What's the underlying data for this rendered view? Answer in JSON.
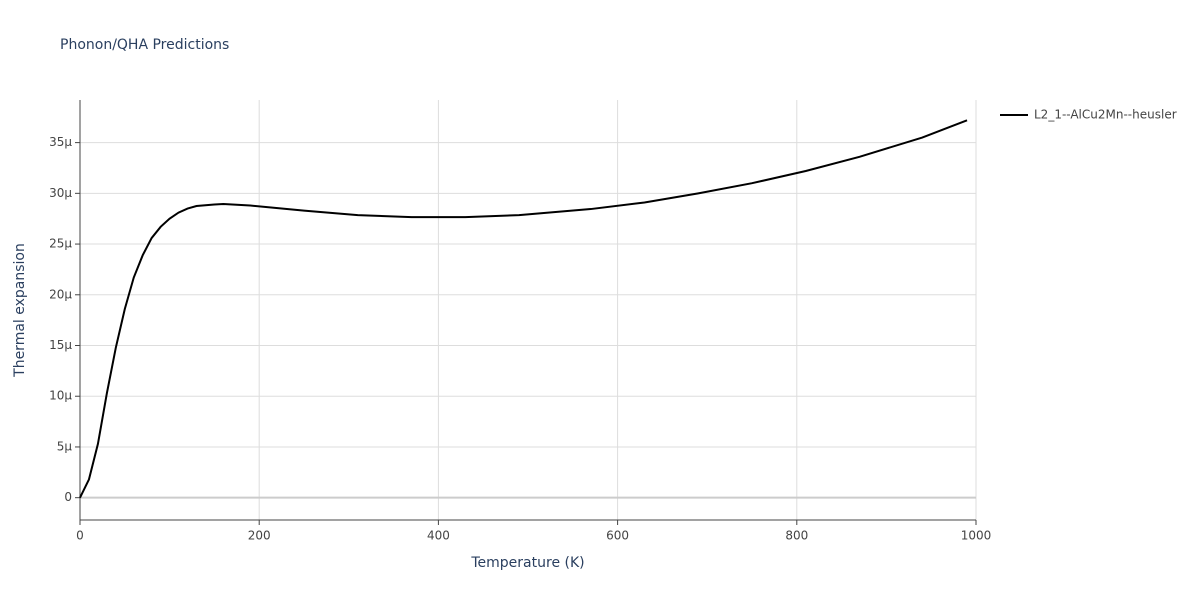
{
  "chart_data": {
    "type": "line",
    "title": "Phonon/QHA Predictions",
    "x_label": "Temperature (K)",
    "y_label": "Thermal expansion",
    "x": [
      0,
      10,
      20,
      30,
      40,
      50,
      60,
      70,
      80,
      90,
      100,
      110,
      120,
      130,
      150,
      160,
      190,
      250,
      310,
      370,
      430,
      490,
      570,
      630,
      690,
      750,
      810,
      870,
      940,
      990
    ],
    "series": [
      {
        "name": "L2_1--AlCu2Mn--heusler",
        "color": "#000000",
        "values": [
          0,
          1.8e-06,
          5.3e-06,
          1.03e-05,
          1.48e-05,
          1.86e-05,
          2.17e-05,
          2.39e-05,
          2.56e-05,
          2.67e-05,
          2.75e-05,
          2.81e-05,
          2.85e-05,
          2.875e-05,
          2.89e-05,
          2.895e-05,
          2.88e-05,
          2.83e-05,
          2.785e-05,
          2.765e-05,
          2.765e-05,
          2.785e-05,
          2.845e-05,
          2.91e-05,
          3e-05,
          3.1e-05,
          3.22e-05,
          3.36e-05,
          3.55e-05,
          3.72e-05
        ]
      }
    ],
    "xlim": [
      0,
      1000
    ],
    "xticks": [
      0,
      200,
      400,
      600,
      800,
      1000
    ],
    "ylim": [
      -2.2e-06,
      3.92e-05
    ],
    "yticks": [
      0,
      {
        "value": 5e-06,
        "label": "5μ"
      },
      {
        "value": 1e-05,
        "label": "10μ"
      },
      {
        "value": 1.5e-05,
        "label": "15μ"
      },
      {
        "value": 2e-05,
        "label": "20μ"
      },
      {
        "value": 2.5e-05,
        "label": "25μ"
      },
      {
        "value": 3e-05,
        "label": "30μ"
      },
      {
        "value": 3.5e-05,
        "label": "35μ"
      }
    ],
    "grid": true,
    "legend": "right"
  }
}
